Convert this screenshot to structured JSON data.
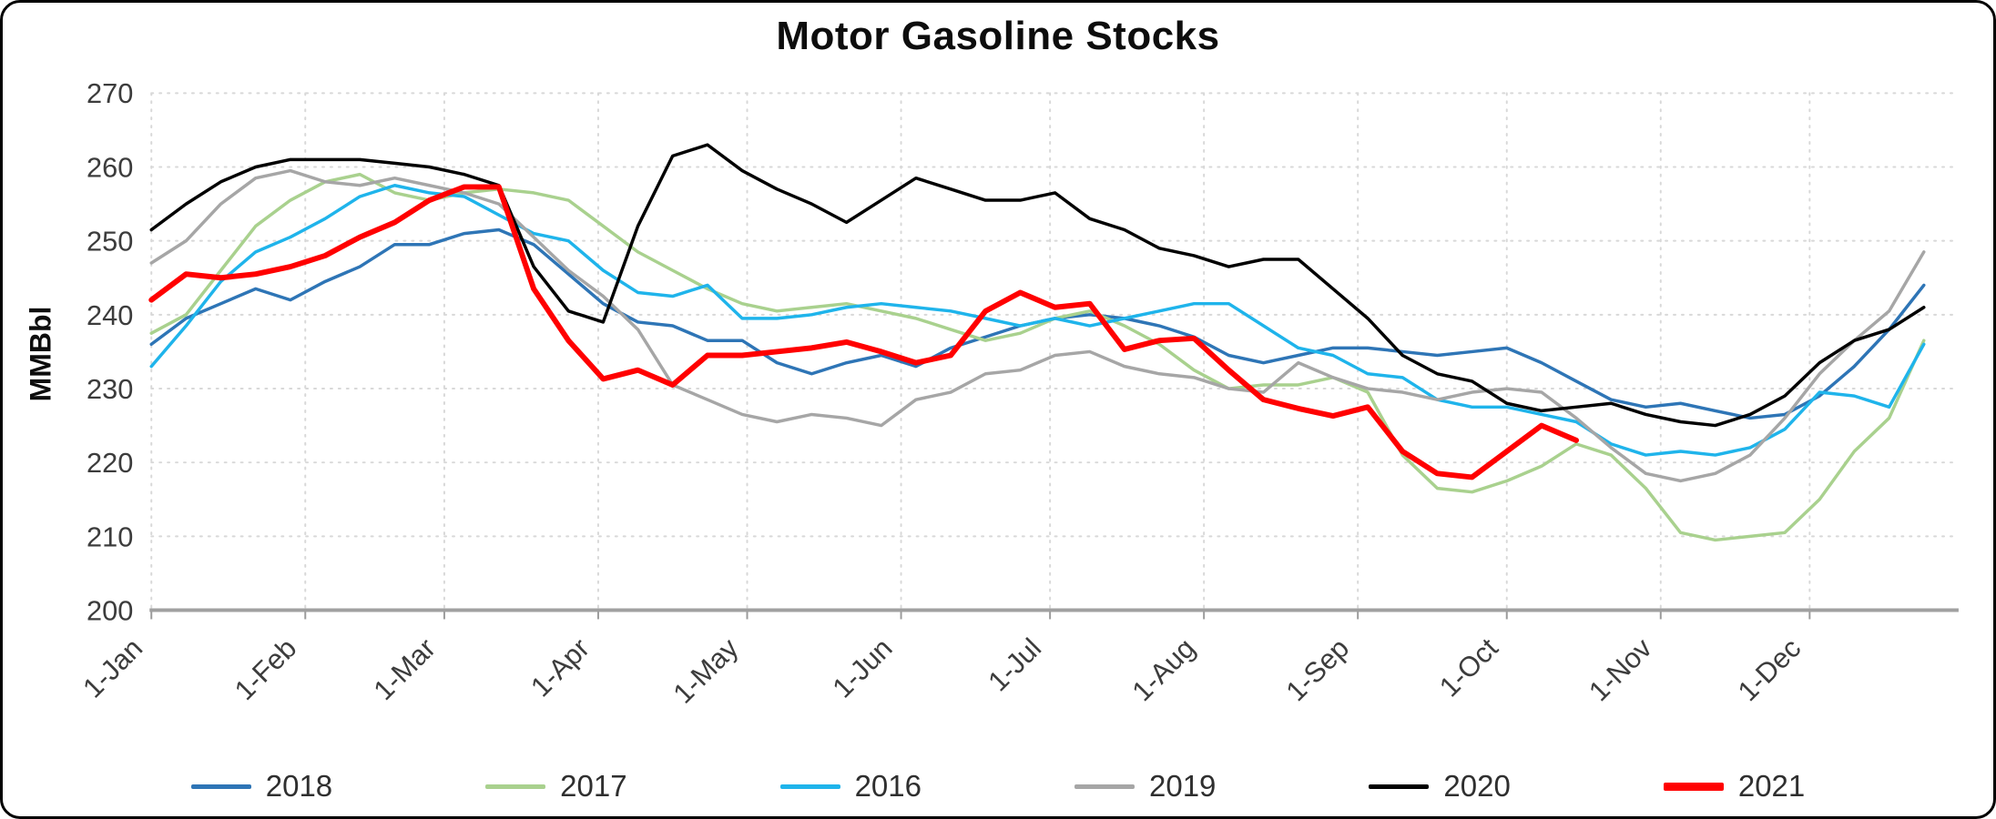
{
  "window": {
    "background": "#ffffff",
    "border_color": "#000000"
  },
  "chart_data": {
    "type": "line",
    "title": "Motor Gasoline Stocks",
    "ylabel": "MMBbl",
    "ylim": [
      200,
      270
    ],
    "yticks": [
      200,
      210,
      220,
      230,
      240,
      250,
      260,
      270
    ],
    "xtick_labels": [
      "1-Jan",
      "1-Feb",
      "1-Mar",
      "1-Apr",
      "1-May",
      "1-Jun",
      "1-Jul",
      "1-Aug",
      "1-Sep",
      "1-Oct",
      "1-Nov",
      "1-Dec"
    ],
    "x_unit": "weekly samples, Jan through Dec",
    "grid": true,
    "legend_position": "bottom",
    "axis_color": "#a0a0a0",
    "grid_color": "#d8d8d8",
    "series": [
      {
        "name": "2018",
        "color": "#2E75B6",
        "width": 3.5,
        "values": [
          236,
          239.5,
          241.5,
          243.5,
          242,
          244.5,
          246.5,
          249.5,
          249.5,
          251,
          251.5,
          249.5,
          245.5,
          241.5,
          239,
          238.5,
          236.5,
          236.5,
          233.5,
          232,
          233.5,
          234.5,
          233,
          235.5,
          237,
          238.5,
          239.5,
          240,
          239.5,
          238.5,
          237,
          234.5,
          233.5,
          234.5,
          235.5,
          235.5,
          235,
          234.5,
          235,
          235.5,
          233.5,
          231,
          228.5,
          227.5,
          228,
          227,
          226,
          226.5,
          229,
          233,
          238,
          244
        ]
      },
      {
        "name": "2017",
        "color": "#A9D18E",
        "width": 3.5,
        "values": [
          237.5,
          240,
          246,
          252,
          255.5,
          258,
          259,
          256.5,
          255.5,
          256.5,
          257,
          256.5,
          255.5,
          252,
          248.5,
          246,
          243.5,
          241.5,
          240.5,
          241,
          241.5,
          240.5,
          239.5,
          238,
          236.5,
          237.5,
          239.5,
          240.5,
          238.5,
          236,
          232.5,
          230,
          230.5,
          230.5,
          231.5,
          229.5,
          221,
          216.5,
          216,
          217.5,
          219.5,
          222.5,
          221,
          216.5,
          210.5,
          209.5,
          210,
          210.5,
          215,
          221.5,
          226,
          236.5
        ]
      },
      {
        "name": "2016",
        "color": "#1FB4EB",
        "width": 3.5,
        "values": [
          233,
          238.5,
          244.5,
          248.5,
          250.5,
          253,
          256,
          257.5,
          256.5,
          256,
          253.5,
          251,
          250,
          246,
          243,
          242.5,
          244,
          239.5,
          239.5,
          240,
          241,
          241.5,
          241,
          240.5,
          239.5,
          238.5,
          239.5,
          238.5,
          239.5,
          240.5,
          241.5,
          241.5,
          238.5,
          235.5,
          234.5,
          232,
          231.5,
          228.5,
          227.5,
          227.5,
          226.5,
          225.5,
          222.5,
          221,
          221.5,
          221,
          222,
          224.5,
          229.5,
          229,
          227.5,
          236
        ]
      },
      {
        "name": "2019",
        "color": "#A6A6A6",
        "width": 3.5,
        "values": [
          247,
          250,
          255,
          258.5,
          259.5,
          258,
          257.5,
          258.5,
          257.5,
          256.5,
          255,
          250.5,
          246,
          242.5,
          238,
          230.5,
          228.5,
          226.5,
          225.5,
          226.5,
          226,
          225,
          228.5,
          229.5,
          232,
          232.5,
          234.5,
          235,
          233,
          232,
          231.5,
          230,
          229.5,
          233.5,
          231.5,
          230,
          229.5,
          228.5,
          229.5,
          230,
          229.5,
          226,
          222,
          218.5,
          217.5,
          218.5,
          221,
          226,
          232,
          236.5,
          240.5,
          248.5
        ]
      },
      {
        "name": "2020",
        "color": "#000000",
        "width": 3.5,
        "values": [
          251.5,
          255,
          258,
          260,
          261,
          261,
          261,
          260.5,
          260,
          259,
          257.5,
          246.5,
          240.5,
          239,
          252,
          261.5,
          263,
          259.5,
          257,
          255,
          252.5,
          255.5,
          258.5,
          257,
          255.5,
          255.5,
          256.5,
          253,
          251.5,
          249,
          248,
          246.5,
          247.5,
          247.5,
          243.5,
          239.5,
          234.5,
          232,
          231,
          228,
          227,
          227.5,
          228,
          226.5,
          225.5,
          225,
          226.5,
          229,
          233.5,
          236.5,
          238,
          241
        ]
      },
      {
        "name": "2021",
        "color": "#FF0000",
        "width": 6,
        "values": [
          242,
          245.5,
          245,
          245.5,
          246.5,
          248,
          250.5,
          252.5,
          255.5,
          257.3,
          257.3,
          243.5,
          236.5,
          231.3,
          232.5,
          230.5,
          234.5,
          234.5,
          235,
          235.5,
          236.3,
          235,
          233.5,
          234.5,
          240.5,
          243,
          241,
          241.5,
          235.3,
          236.5,
          236.8,
          232.5,
          228.5,
          227.3,
          226.3,
          227.5,
          221.5,
          218.5,
          218,
          221.5,
          225,
          223
        ]
      }
    ]
  }
}
